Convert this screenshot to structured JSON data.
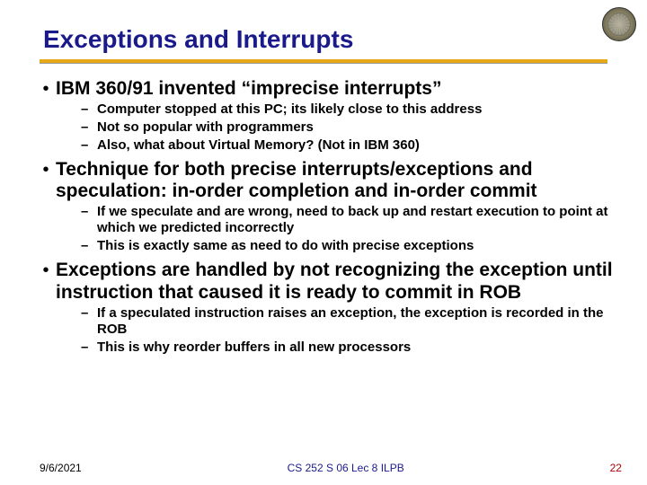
{
  "title": "Exceptions and Interrupts",
  "bullets": [
    {
      "text": "IBM 360/91 invented “imprecise interrupts”",
      "subs": [
        "Computer stopped at this PC; its likely close to this address",
        "Not so popular with programmers",
        "Also, what about Virtual Memory? (Not in IBM 360)"
      ]
    },
    {
      "text": "Technique for both precise interrupts/exceptions and speculation: in-order completion and in-order commit",
      "subs": [
        "If we speculate and are wrong, need to back up and restart execution to point at which we predicted incorrectly",
        "This is exactly same as need to do with precise exceptions"
      ]
    },
    {
      "text": "Exceptions are handled by not recognizing the exception until instruction that caused it is ready to commit in ROB",
      "subs": [
        "If a speculated instruction raises an exception, the exception is recorded in the ROB",
        "This is why reorder buffers in all new processors"
      ]
    }
  ],
  "footer": {
    "date": "9/6/2021",
    "course": "CS 252 S 06 Lec 8 ILPB",
    "page": "22"
  }
}
